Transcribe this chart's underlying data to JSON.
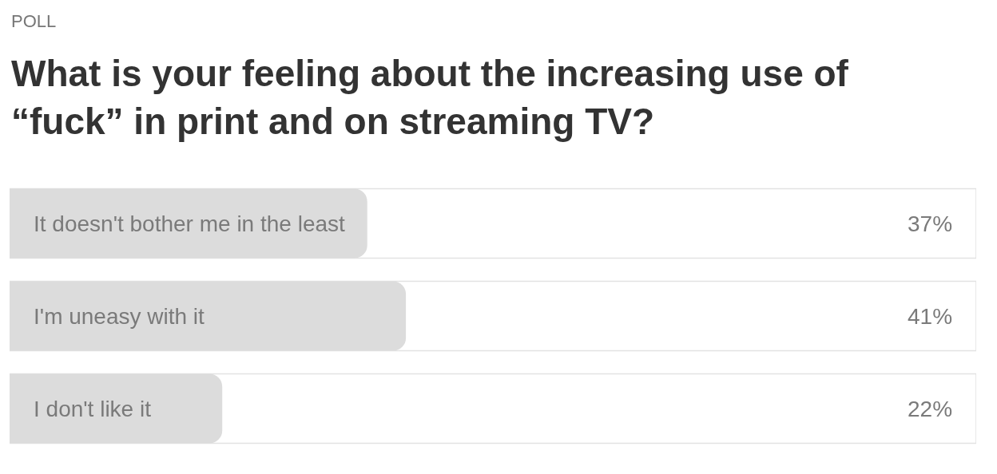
{
  "chart_data": {
    "type": "bar",
    "orientation": "horizontal",
    "title": "What is your feeling about the increasing use of “fuck” in print and on streaming TV?",
    "annotations": [
      "POLL"
    ],
    "categories": [
      "It doesn't bother me in the least",
      "I'm uneasy with it",
      "I don't like it"
    ],
    "values": [
      37,
      41,
      22
    ],
    "value_labels": [
      "37%",
      "41%",
      "22%"
    ],
    "color": "#dcdcdc",
    "xlim": [
      0,
      100
    ],
    "tick_labels": false,
    "grid": false,
    "legend": false
  }
}
